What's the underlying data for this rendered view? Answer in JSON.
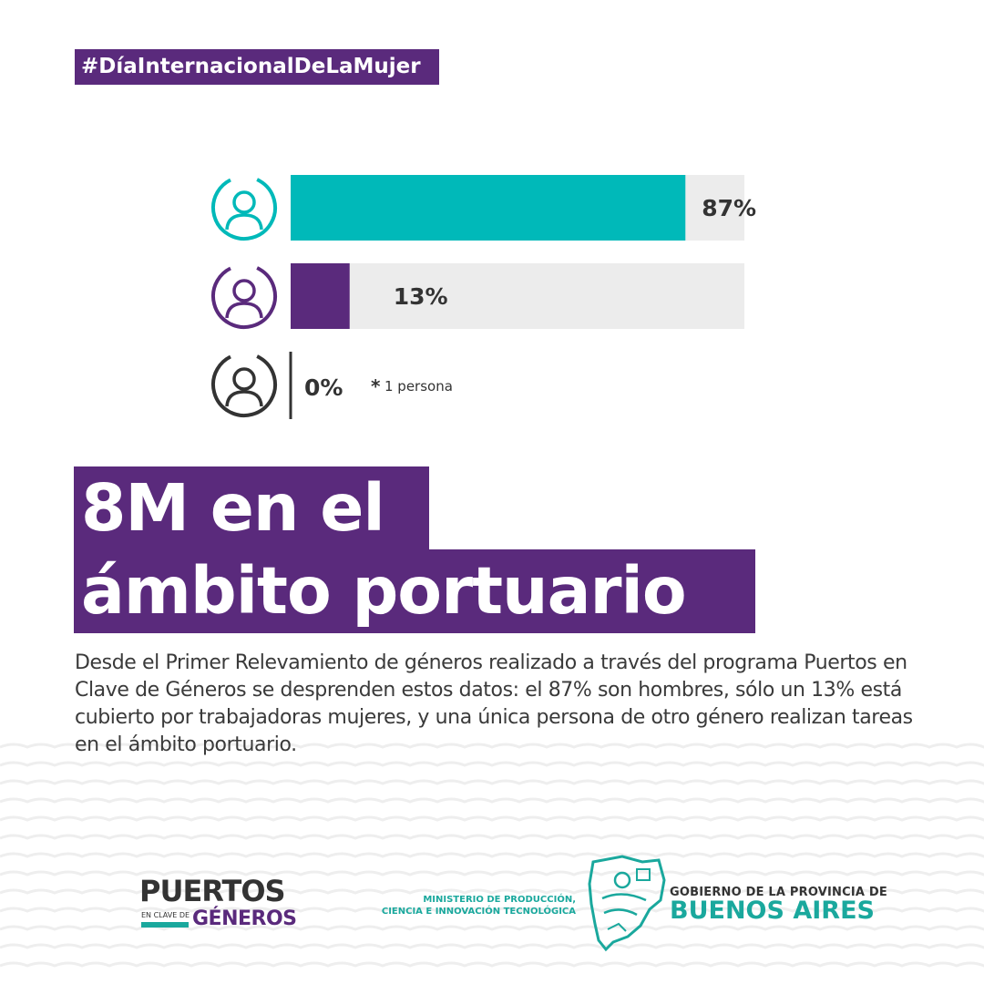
{
  "hashtag": "#DíaInternacionalDeLaMujer",
  "chart_data": {
    "type": "bar",
    "orientation": "horizontal",
    "categories": [
      "hombres",
      "mujeres",
      "otro género"
    ],
    "values": [
      87,
      13,
      0
    ],
    "value_labels": [
      "87%",
      "13%",
      "0%"
    ],
    "xlim": [
      0,
      100
    ],
    "icons": [
      "man-icon",
      "woman-icon",
      "person-icon"
    ],
    "colors": [
      "#00b9b9",
      "#5a2a7c",
      "#333333"
    ],
    "track_color": "#ececec",
    "note": "1 persona",
    "note_marker": "*"
  },
  "title": {
    "line1": "8M en el",
    "line2": "ámbito portuario"
  },
  "body_text": "Desde el Primer Relevamiento de géneros realizado a través del programa Puertos en Clave de Géneros se desprenden estos datos: el 87% son hombres, sólo un 13% está cubierto por trabajadoras mujeres, y una única persona de otro género realizan tareas en el ámbito portuario.",
  "footer": {
    "puertos_main": "PUERTOS",
    "puertos_small": "EN CLAVE DE",
    "puertos_generos": "GÉNEROS",
    "ministerio_line1": "MINISTERIO DE PRODUCCIÓN,",
    "ministerio_line2": "CIENCIA E INNOVACIÓN TECNOLÓGICA",
    "gobierno_small": "GOBIERNO DE LA PROVINCIA DE",
    "gobierno_big": "BUENOS AIRES"
  },
  "colors": {
    "purple": "#5a2a7c",
    "teal": "#00b9b9",
    "brand_green": "#1aa89d",
    "text_dark": "#333333"
  }
}
